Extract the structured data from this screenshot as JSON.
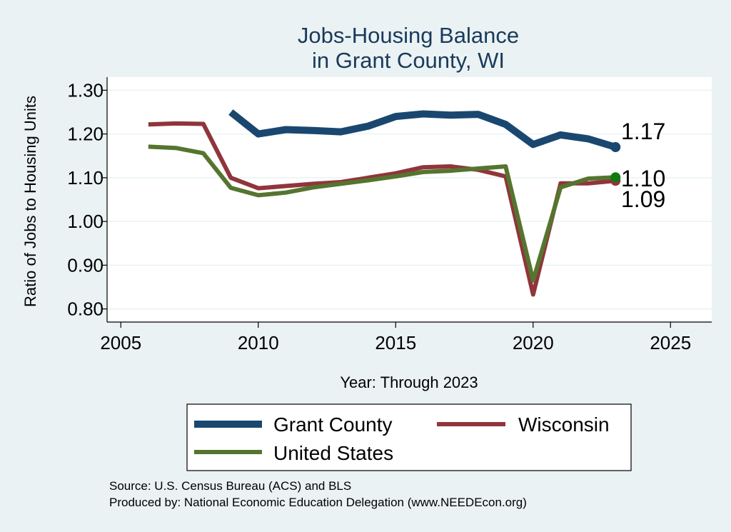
{
  "chart_data": {
    "type": "line",
    "title": [
      "Jobs-Housing Balance",
      "in Grant County, WI"
    ],
    "xlabel": "Year: Through 2023",
    "ylabel": "Ratio of Jobs to Housing Units",
    "xlim": [
      2004.5,
      2026.5
    ],
    "ylim": [
      0.77,
      1.33
    ],
    "x_ticks": [
      2005,
      2010,
      2015,
      2020,
      2025
    ],
    "y_ticks": [
      0.8,
      0.9,
      1.0,
      1.1,
      1.2,
      1.3
    ],
    "y_tick_labels": [
      "0.80",
      "0.90",
      "1.00",
      "1.10",
      "1.20",
      "1.30"
    ],
    "grid": true,
    "legend_position": "bottom",
    "series": [
      {
        "name": "Grant County",
        "color": "#1a476f",
        "x": [
          2009,
          2010,
          2011,
          2012,
          2013,
          2014,
          2015,
          2016,
          2017,
          2018,
          2019,
          2020,
          2021,
          2022,
          2023
        ],
        "values": [
          1.25,
          1.2,
          1.21,
          1.208,
          1.205,
          1.218,
          1.24,
          1.246,
          1.243,
          1.245,
          1.222,
          1.176,
          1.198,
          1.189,
          1.17
        ],
        "end_label": "1.17"
      },
      {
        "name": "Wisconsin",
        "color": "#90353b",
        "x": [
          2006,
          2007,
          2008,
          2009,
          2010,
          2011,
          2012,
          2013,
          2014,
          2015,
          2016,
          2017,
          2018,
          2019,
          2020,
          2021,
          2022,
          2023
        ],
        "values": [
          1.222,
          1.224,
          1.223,
          1.1,
          1.076,
          1.081,
          1.086,
          1.09,
          1.1,
          1.11,
          1.124,
          1.126,
          1.118,
          1.103,
          0.833,
          1.087,
          1.087,
          1.093
        ],
        "end_label": "1.09"
      },
      {
        "name": "United States",
        "color": "#55752f",
        "x": [
          2006,
          2007,
          2008,
          2009,
          2010,
          2011,
          2012,
          2013,
          2014,
          2015,
          2016,
          2017,
          2018,
          2019,
          2020,
          2021,
          2022,
          2023
        ],
        "values": [
          1.171,
          1.168,
          1.156,
          1.077,
          1.06,
          1.066,
          1.078,
          1.086,
          1.094,
          1.103,
          1.113,
          1.116,
          1.121,
          1.126,
          0.865,
          1.078,
          1.098,
          1.101
        ],
        "end_label": "1.10"
      }
    ]
  },
  "source_note": "Source: U.S. Census Bureau (ACS) and BLS",
  "producer_note": "Produced by: National Economic Education Delegation (www.NEEDEcon.org)"
}
